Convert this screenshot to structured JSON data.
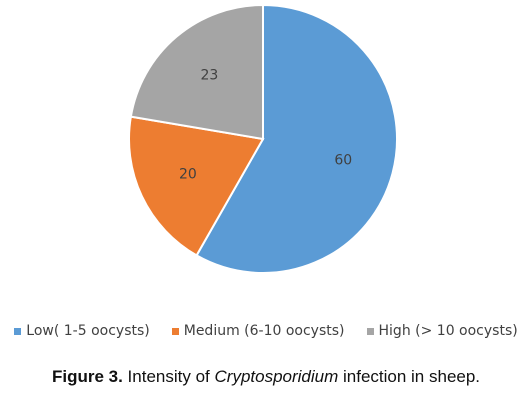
{
  "chart_data": {
    "type": "pie",
    "categories": [
      "Low( 1-5 oocysts)",
      "Medium (6-10 oocysts)",
      "High (> 10 oocysts)"
    ],
    "values": [
      60,
      20,
      23
    ],
    "colors": [
      "#5b9bd5",
      "#ed7d31",
      "#a5a5a5"
    ],
    "data_labels": [
      "60",
      "20",
      "23"
    ],
    "legend_position": "bottom",
    "start_angle": "top, clockwise"
  },
  "caption": {
    "figure_number": "Figure 3.",
    "text_before": " Intensity of ",
    "italic_term": "Cryptosporidium",
    "text_after": " infection in sheep."
  }
}
